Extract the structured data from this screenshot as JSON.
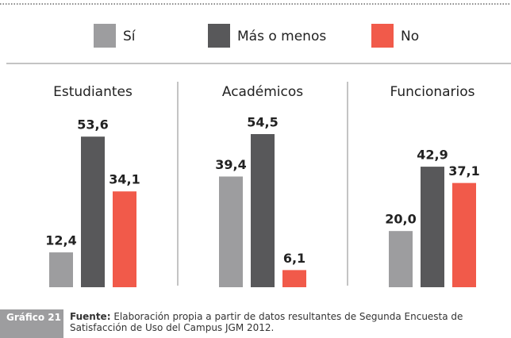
{
  "chart_data": {
    "type": "bar",
    "categories": [
      "Estudiantes",
      "Académicos",
      "Funcionarios"
    ],
    "series": [
      {
        "name": "Sí",
        "color": "#9d9d9f",
        "values": [
          12.4,
          39.4,
          20.0
        ],
        "value_labels": [
          "12,4",
          "39,4",
          "20,0"
        ]
      },
      {
        "name": "Más o menos",
        "color": "#58585a",
        "values": [
          53.6,
          54.5,
          42.9
        ],
        "value_labels": [
          "53,6",
          "54,5",
          "42,9"
        ]
      },
      {
        "name": "No",
        "color": "#f15a4a",
        "values": [
          34.1,
          6.1,
          37.1
        ],
        "value_labels": [
          "34,1",
          "6,1",
          "37,1"
        ]
      }
    ],
    "caption_label": "Gráfico 21",
    "source_label": "Fuente:",
    "source": "Elaboración propia a partir de datos resultantes de Segunda Encuesta de Satisfacción de Uso del Campus JGM 2012."
  }
}
